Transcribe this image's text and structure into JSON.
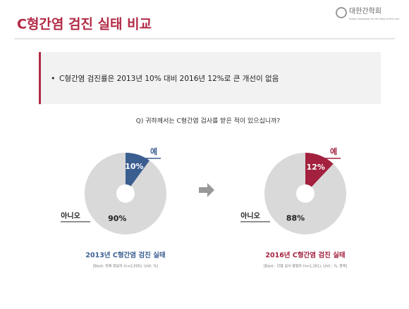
{
  "slide": {
    "title": "C형간염 검진 실태 비교",
    "logo": "대한간학회",
    "logo_subtitle": "Korean Association for the Study of the Liver",
    "bullet": "C형간염 검진률은 2013년 10% 대비 2016년 12%로 큰 개선이 없음",
    "question": "Q) 귀하께서는 C형간염 검사를 받은 적이 있으십니까?"
  },
  "chart_data": [
    {
      "type": "pie",
      "title": "2013년 C형간염 검진 실태",
      "subtitle": "[Base: 전체 응답자 (n=2,000), Unit: %]",
      "categories": [
        "예",
        "아니오"
      ],
      "values": [
        10,
        90
      ],
      "value_labels": [
        "10%",
        "90%"
      ],
      "colors": [
        "#3b5e91",
        "#d9d9d9"
      ],
      "title_color": "#3b5e91"
    },
    {
      "type": "pie",
      "title": "2016년 C형간염 검진 실태",
      "subtitle": "[Base : 간염 검사 경험자 (n=1,261), Unit : %, 중복]",
      "categories": [
        "예",
        "아니오"
      ],
      "values": [
        12,
        88
      ],
      "value_labels": [
        "12%",
        "88%"
      ],
      "colors": [
        "#a3213e",
        "#d9d9d9"
      ],
      "title_color": "#a3213e"
    }
  ]
}
